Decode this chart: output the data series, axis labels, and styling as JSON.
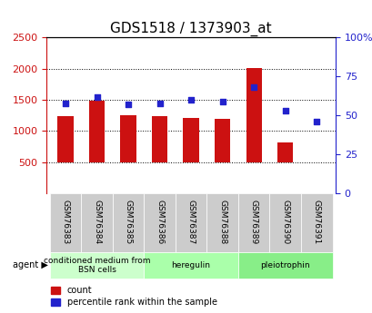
{
  "title": "GDS1518 / 1373903_at",
  "samples": [
    "GSM76383",
    "GSM76384",
    "GSM76385",
    "GSM76386",
    "GSM76387",
    "GSM76388",
    "GSM76389",
    "GSM76390",
    "GSM76391"
  ],
  "counts": [
    1240,
    1490,
    1255,
    1235,
    1215,
    1195,
    2010,
    820,
    500
  ],
  "percentiles": [
    58,
    62,
    57,
    58,
    60,
    59,
    68,
    53,
    46
  ],
  "ylim_left": [
    0,
    2500
  ],
  "ylim_right": [
    0,
    100
  ],
  "yticks_left": [
    500,
    1000,
    1500,
    2000,
    2500
  ],
  "yticks_right": [
    0,
    25,
    50,
    75,
    100
  ],
  "bar_color": "#cc1111",
  "dot_color": "#2222cc",
  "bar_bottom": 500,
  "groups": [
    {
      "label": "conditioned medium from\nBSN cells",
      "start": 0,
      "end": 3,
      "color": "#ccffcc"
    },
    {
      "label": "heregulin",
      "start": 3,
      "end": 6,
      "color": "#aaffaa"
    },
    {
      "label": "pleiotrophin",
      "start": 6,
      "end": 9,
      "color": "#88ee88"
    }
  ],
  "legend_count_color": "#cc1111",
  "legend_dot_color": "#2222cc",
  "background_plot": "#ffffff",
  "tick_area_color": "#dddddd",
  "grid_color": "#000000",
  "left_tick_color": "#cc1111",
  "right_tick_color": "#2222cc"
}
